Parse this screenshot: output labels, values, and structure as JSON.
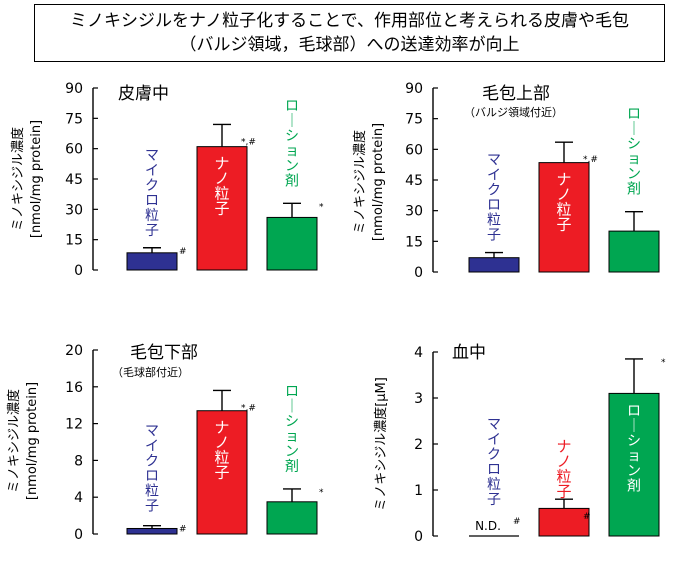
{
  "title_box": {
    "line1": "ミノキシジルをナノ粒子化することで、作用部位と考えられる皮膚や毛包",
    "line2": "（バルジ領域，毛球部）への送達効率が向上"
  },
  "colors": {
    "micro": "#2e3192",
    "nano": "#ed1c24",
    "lotion": "#00a651",
    "axis": "#000000"
  },
  "chart_data": [
    {
      "type": "bar",
      "title": "皮膚中",
      "subtitle": "",
      "ylabel_line1": "ミノキシジル濃度",
      "ylabel_line2": "[nmol/mg protein]",
      "ylim": [
        0,
        90
      ],
      "yticks": [
        "0",
        "15",
        "30",
        "45",
        "60",
        "75",
        "90"
      ],
      "categories": [
        "マイクロ粒子",
        "ナノ粒子",
        "ローション剤"
      ],
      "values": [
        8.5,
        61,
        26
      ],
      "errors": [
        2.5,
        11,
        7
      ],
      "marks": [
        "#",
        "*,#",
        "*"
      ]
    },
    {
      "type": "bar",
      "title": "毛包上部",
      "subtitle": "（バルジ領域付近）",
      "ylabel_line1": "ミノキシジル濃度",
      "ylabel_line2": "[nmol/mg protein]",
      "ylim": [
        0,
        90
      ],
      "yticks": [
        "0",
        "15",
        "30",
        "45",
        "60",
        "75",
        "90"
      ],
      "categories": [
        "マイクロ粒子",
        "ナノ粒子",
        "ローション剤"
      ],
      "values": [
        7,
        53.5,
        20
      ],
      "errors": [
        2.5,
        10,
        9.5
      ],
      "marks": [
        "",
        "*,#",
        ""
      ]
    },
    {
      "type": "bar",
      "title": "毛包下部",
      "subtitle": "（毛球部付近）",
      "ylabel_line1": "ミノキシジル濃度",
      "ylabel_line2": "[nmol/mg protein]",
      "ylim": [
        0,
        20
      ],
      "yticks": [
        "0",
        "4",
        "8",
        "12",
        "16",
        "20"
      ],
      "categories": [
        "マイクロ粒子",
        "ナノ粒子",
        "ローション剤"
      ],
      "values": [
        0.6,
        13.4,
        3.5
      ],
      "errors": [
        0.3,
        2.2,
        1.4
      ],
      "marks": [
        "#",
        "*,#",
        "*"
      ]
    },
    {
      "type": "bar",
      "title": "血中",
      "subtitle": "",
      "ylabel_line1": "ミノキシジル濃度[μM]",
      "ylabel_line2": "",
      "ylim": [
        0,
        4
      ],
      "yticks": [
        "0",
        "1",
        "2",
        "3",
        "4"
      ],
      "categories": [
        "マイクロ粒子",
        "ナノ粒子",
        "ローション剤"
      ],
      "values": [
        0,
        0.6,
        3.1
      ],
      "errors": [
        0,
        0.2,
        0.75
      ],
      "marks": [
        "N.D. #",
        "#",
        "*"
      ]
    }
  ]
}
